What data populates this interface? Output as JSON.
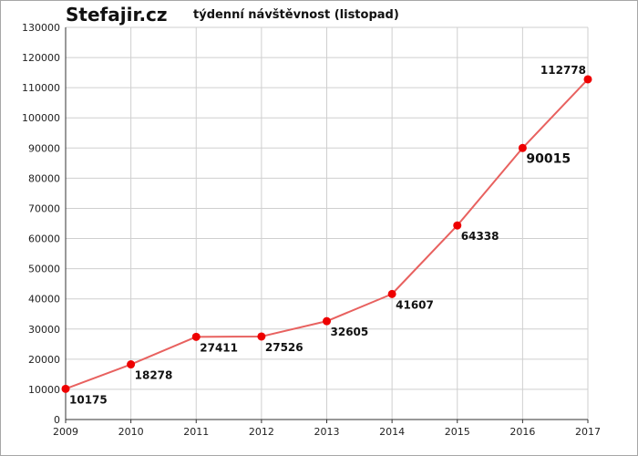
{
  "header": {
    "brand": "Stefajir.cz",
    "title": "týdenní návštěvnost (listopad)"
  },
  "colors": {
    "line": "#e8615f",
    "marker": "#ee0000",
    "grid": "#cfcfcf",
    "axis": "#333333"
  },
  "chart_data": {
    "type": "line",
    "title": "týdenní návštěvnost (listopad)",
    "x": [
      "2009",
      "2010",
      "2011",
      "2012",
      "2013",
      "2014",
      "2015",
      "2016",
      "2017"
    ],
    "series": [
      {
        "values": [
          10175,
          18278,
          27411,
          27526,
          32605,
          41607,
          64338,
          90015,
          112778
        ],
        "data_labels": [
          "10175",
          "18278",
          "27411",
          "27526",
          "32605",
          "41607",
          "64338",
          "90015",
          "112778"
        ]
      }
    ],
    "ylim": [
      0,
      130000
    ],
    "yticks": [
      "0",
      "10000",
      "20000",
      "30000",
      "40000",
      "50000",
      "60000",
      "70000",
      "80000",
      "90000",
      "100000",
      "110000",
      "120000",
      "130000"
    ],
    "grid": true,
    "legend": "none"
  }
}
